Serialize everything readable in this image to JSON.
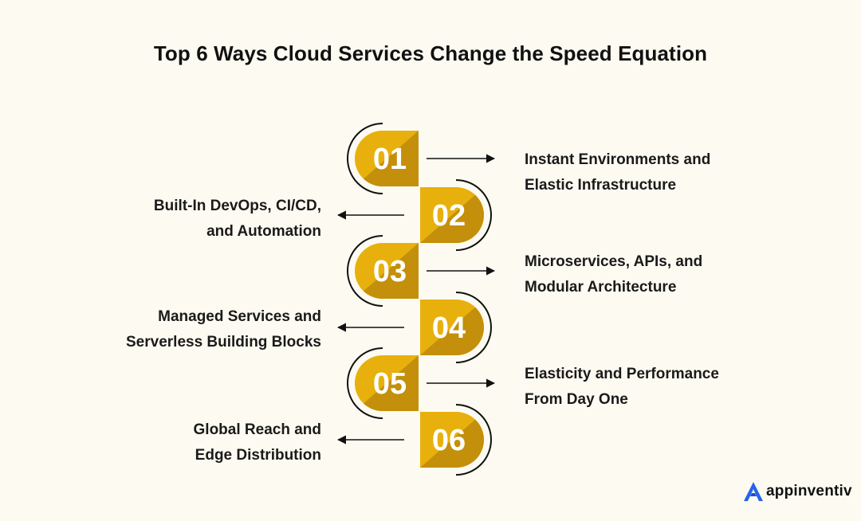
{
  "title": "Top 6 Ways Cloud Services Change the Speed Equation",
  "steps": [
    {
      "number": "01",
      "line1": "Instant Environments and",
      "line2": "Elastic Infrastructure",
      "side": "right"
    },
    {
      "number": "02",
      "line1": "Built-In DevOps, CI/CD,",
      "line2": "and Automation",
      "side": "left"
    },
    {
      "number": "03",
      "line1": "Microservices, APIs, and",
      "line2": "Modular Architecture",
      "side": "right"
    },
    {
      "number": "04",
      "line1": "Managed Services and",
      "line2": "Serverless Building Blocks",
      "side": "left"
    },
    {
      "number": "05",
      "line1": "Elasticity and Performance",
      "line2": "From Day One",
      "side": "right"
    },
    {
      "number": "06",
      "line1": "Global Reach and",
      "line2": "Edge Distribution",
      "side": "left"
    }
  ],
  "colors": {
    "background": "#fdfbf1",
    "badge_light": "#e8b00c",
    "badge_dark": "#c48f0a",
    "text": "#111111",
    "logo_blue": "#2563eb"
  },
  "logo": {
    "text": "appinventiv",
    "icon": "appinventiv-a-logo-icon"
  }
}
